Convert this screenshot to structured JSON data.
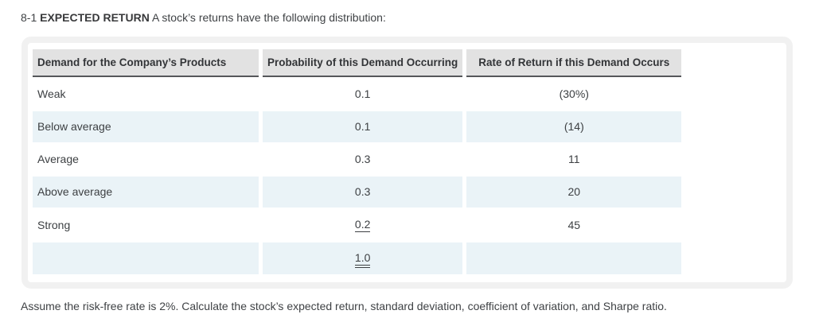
{
  "problem": {
    "number": "8-1",
    "title": "EXPECTED RETURN",
    "intro_text": "A stock’s returns have the following distribution:",
    "footer_text": "Assume the risk-free rate is 2%. Calculate the stock’s expected return, standard deviation, coefficient of variation, and Sharpe ratio."
  },
  "table": {
    "headers": [
      "Demand for the Company’s Products",
      "Probability of this Demand Occurring",
      "Rate of Return if this Demand Occurs"
    ],
    "rows": [
      {
        "demand": "Weak",
        "probability": "0.1",
        "rate": "(30%)",
        "probability_underline": "none"
      },
      {
        "demand": "Below average",
        "probability": "0.1",
        "rate": "(14)",
        "probability_underline": "none"
      },
      {
        "demand": "Average",
        "probability": "0.3",
        "rate": "11",
        "probability_underline": "none"
      },
      {
        "demand": "Above average",
        "probability": "0.3",
        "rate": "20",
        "probability_underline": "none"
      },
      {
        "demand": "Strong",
        "probability": "0.2",
        "rate": "45",
        "probability_underline": "single"
      },
      {
        "demand": "",
        "probability": "1.0",
        "rate": "",
        "probability_underline": "double"
      }
    ]
  },
  "colors": {
    "header_bg": "#e2e2e2",
    "alt_row_bg": "#eaf3f7",
    "card_border": "#f1f1f1",
    "header_rule": "#55575a",
    "text": "#3f4245"
  }
}
